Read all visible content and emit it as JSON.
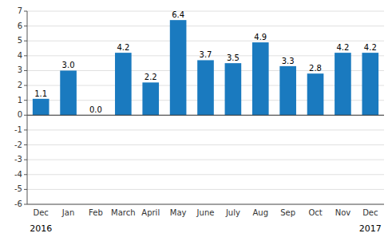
{
  "chart_data": {
    "type": "bar",
    "categories": [
      "Dec",
      "Jan",
      "Feb",
      "March",
      "April",
      "May",
      "June",
      "July",
      "Aug",
      "Sep",
      "Oct",
      "Nov",
      "Dec"
    ],
    "values": [
      1.1,
      3.0,
      0.0,
      4.2,
      2.2,
      6.4,
      3.7,
      3.5,
      4.9,
      3.3,
      2.8,
      4.2,
      4.2
    ],
    "value_labels": [
      "1.1",
      "3.0",
      "0.0",
      "4.2",
      "2.2",
      "6.4",
      "3.7",
      "3.5",
      "4.9",
      "3.3",
      "2.8",
      "4.2",
      "4.2"
    ],
    "data_labels": true,
    "color": "#1a7abf",
    "ylim": [
      -6,
      7
    ],
    "yticks": [
      -6,
      -5,
      -4,
      -3,
      -2,
      -1,
      0,
      1,
      2,
      3,
      4,
      5,
      6,
      7
    ],
    "grid": true,
    "annotations": [
      "2016",
      "2017"
    ]
  }
}
